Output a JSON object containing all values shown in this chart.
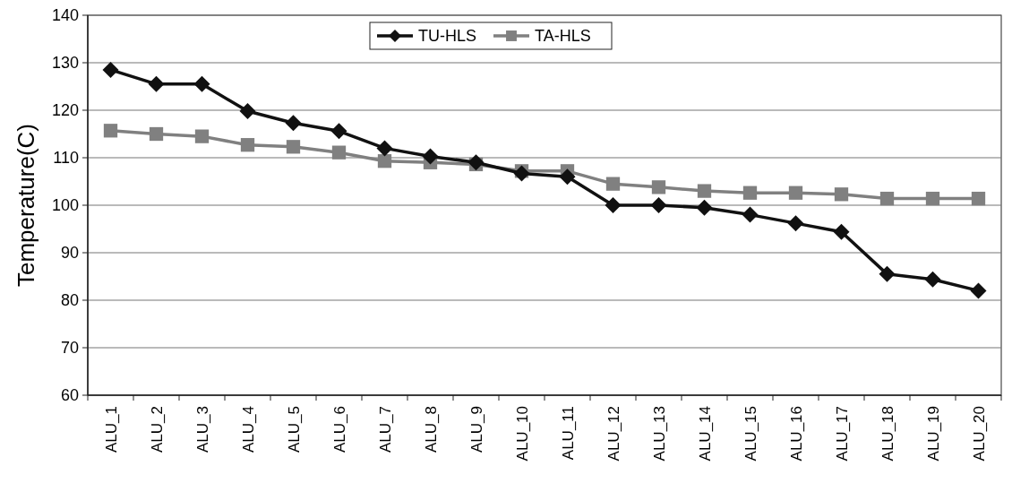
{
  "chart_data": {
    "type": "line",
    "ylabel": "Temperature(C)",
    "categories": [
      "ALU_1",
      "ALU_2",
      "ALU_3",
      "ALU_4",
      "ALU_5",
      "ALU_6",
      "ALU_7",
      "ALU_8",
      "ALU_9",
      "ALU_10",
      "ALU_11",
      "ALU_12",
      "ALU_13",
      "ALU_14",
      "ALU_15",
      "ALU_16",
      "ALU_17",
      "ALU_18",
      "ALU_19",
      "ALU_20"
    ],
    "series": [
      {
        "name": "TU-HLS",
        "color": "#111111",
        "marker": "diamond",
        "values": [
          128.5,
          125.5,
          125.5,
          119.8,
          117.3,
          115.6,
          112,
          110.3,
          109,
          106.7,
          106,
          100,
          100,
          99.5,
          98,
          96.2,
          94.4,
          85.5,
          84.4,
          82
        ]
      },
      {
        "name": "TA-HLS",
        "color": "#808080",
        "marker": "square",
        "values": [
          115.7,
          115,
          114.5,
          112.7,
          112.3,
          111.1,
          109.3,
          109,
          108.6,
          107.2,
          107.2,
          104.5,
          103.8,
          103,
          102.6,
          102.6,
          102.3,
          101.4,
          101.4,
          101.4
        ]
      }
    ],
    "ylim": [
      60,
      140
    ],
    "yticks": [
      60,
      70,
      80,
      90,
      100,
      110,
      120,
      130,
      140
    ],
    "grid": "y",
    "legend": "top"
  }
}
